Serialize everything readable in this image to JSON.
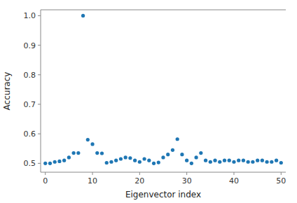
{
  "chart_data": {
    "type": "scatter",
    "xlabel": "Eigenvector index",
    "ylabel": "Accuracy",
    "x": [
      0,
      1,
      2,
      3,
      4,
      5,
      6,
      7,
      8,
      9,
      10,
      11,
      12,
      13,
      14,
      15,
      16,
      17,
      18,
      19,
      20,
      21,
      22,
      23,
      24,
      25,
      26,
      27,
      28,
      29,
      30,
      31,
      32,
      33,
      34,
      35,
      36,
      37,
      38,
      39,
      40,
      41,
      42,
      43,
      44,
      45,
      46,
      47,
      48,
      49,
      50
    ],
    "values": [
      0.5,
      0.5,
      0.505,
      0.507,
      0.51,
      0.52,
      0.535,
      0.535,
      1.0,
      0.58,
      0.565,
      0.535,
      0.534,
      0.502,
      0.505,
      0.51,
      0.515,
      0.52,
      0.518,
      0.51,
      0.505,
      0.515,
      0.51,
      0.5,
      0.503,
      0.52,
      0.53,
      0.545,
      0.582,
      0.53,
      0.51,
      0.5,
      0.52,
      0.535,
      0.51,
      0.505,
      0.51,
      0.505,
      0.51,
      0.51,
      0.505,
      0.51,
      0.51,
      0.505,
      0.505,
      0.51,
      0.51,
      0.505,
      0.505,
      0.51,
      0.502
    ],
    "color": "#1f77b4",
    "marker": "circle",
    "xlim": [
      -1,
      51
    ],
    "ylim": [
      0.47,
      1.02
    ],
    "xticks": [
      0,
      10,
      20,
      30,
      40,
      50
    ],
    "yticks": [
      0.5,
      0.6,
      0.7,
      0.8,
      0.9,
      {
        "value": 1.0,
        "label": "1.0"
      }
    ]
  }
}
